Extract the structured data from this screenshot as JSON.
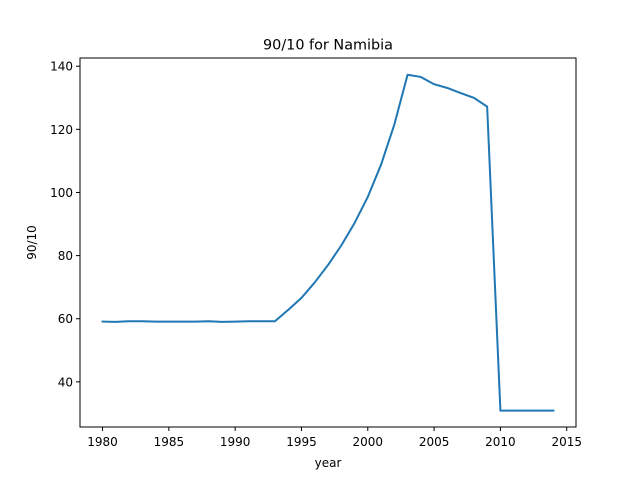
{
  "chart_data": {
    "type": "line",
    "title": "90/10 for Namibia",
    "xlabel": "year",
    "ylabel": "90/10",
    "xlim": [
      1978.3,
      2015.7
    ],
    "ylim": [
      25.7,
      142.6
    ],
    "xticks": [
      1980,
      1985,
      1990,
      1995,
      2000,
      2005,
      2010,
      2015
    ],
    "yticks": [
      40,
      60,
      80,
      100,
      120,
      140
    ],
    "grid": false,
    "color": "#1f77b4",
    "series": [
      {
        "x": [
          1980,
          1981,
          1982,
          1983,
          1984,
          1985,
          1986,
          1987,
          1988,
          1989,
          1990,
          1991,
          1992,
          1993,
          1994,
          1995,
          1996,
          1997,
          1998,
          1999,
          2000,
          2001,
          2002,
          2003,
          2004,
          2005,
          2006,
          2007,
          2008,
          2009,
          2010,
          2011,
          2012,
          2013,
          2014
        ],
        "values": [
          59.1,
          59.0,
          59.2,
          59.2,
          59.1,
          59.1,
          59.1,
          59.1,
          59.2,
          59.0,
          59.1,
          59.2,
          59.2,
          59.2,
          62.8,
          66.6,
          71.5,
          77.0,
          83.2,
          90.3,
          98.6,
          108.8,
          121.5,
          137.3,
          136.6,
          134.3,
          133.1,
          131.5,
          130.0,
          127.2,
          30.9,
          30.9,
          30.9,
          30.9,
          30.9
        ]
      }
    ]
  }
}
